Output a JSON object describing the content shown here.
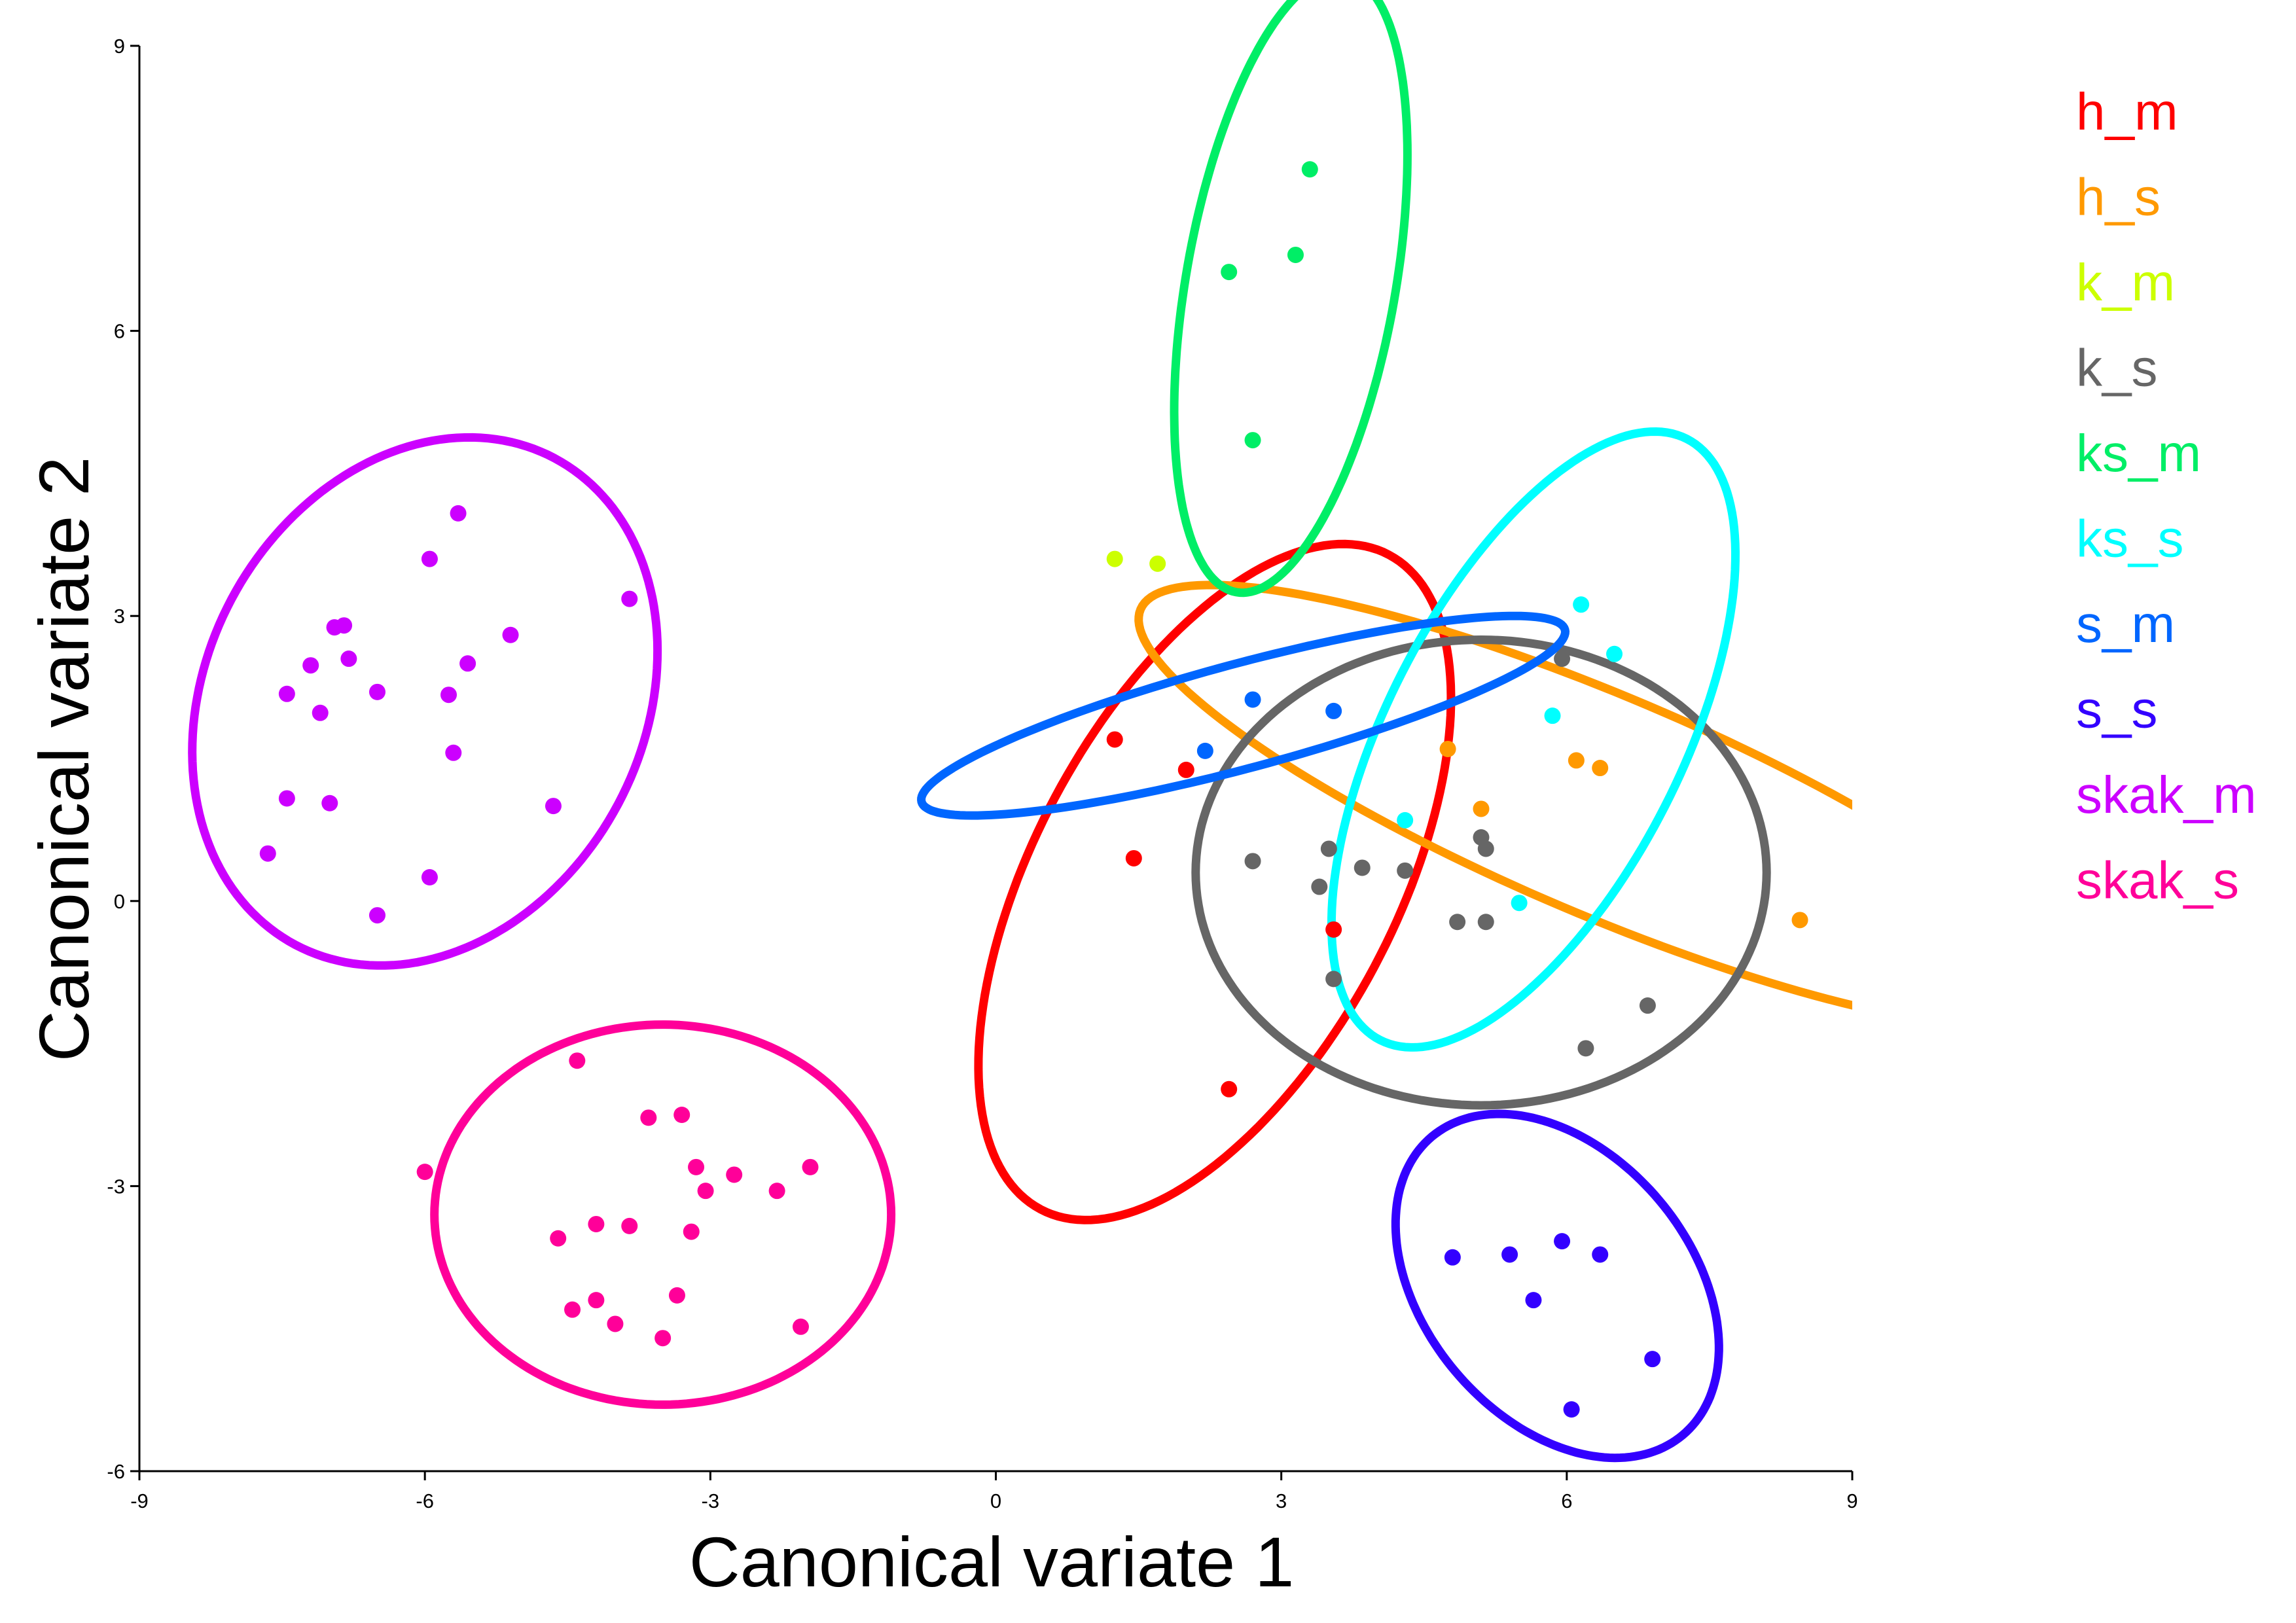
{
  "chart_data": {
    "type": "scatter",
    "title": "",
    "xlabel": "Canonical variate 1",
    "ylabel": "Canonical variate 2",
    "xlim": [
      -9,
      9
    ],
    "ylim": [
      -6,
      9
    ],
    "xticks": [
      -9,
      -6,
      -3,
      0,
      3,
      6,
      9
    ],
    "yticks": [
      -6,
      -3,
      0,
      3,
      6,
      9
    ],
    "xtick_labels": [
      "-9",
      "-6",
      "-3",
      "0",
      "3",
      "6",
      "9"
    ],
    "ytick_labels": [
      "-6",
      "-3",
      "0",
      "3",
      "6",
      "9"
    ],
    "grid": false,
    "legend_position": "right",
    "series": [
      {
        "name": "h_m",
        "color": "#ff0000",
        "ellipse": {
          "cx": 2.3,
          "cy": 0.2,
          "rx": 3.9,
          "ry": 1.9,
          "angle_deg": 62
        },
        "points": [
          [
            1.25,
            1.7
          ],
          [
            2.0,
            1.38
          ],
          [
            1.45,
            0.45
          ],
          [
            3.55,
            -0.3
          ],
          [
            2.45,
            -1.98
          ]
        ]
      },
      {
        "name": "h_s",
        "color": "#ff9900",
        "ellipse": {
          "cx": 6.4,
          "cy": 1.0,
          "rx": 5.3,
          "ry": 1.15,
          "angle_deg": -23
        },
        "points": [
          [
            4.75,
            1.6
          ],
          [
            5.1,
            0.97
          ],
          [
            6.1,
            1.48
          ],
          [
            6.35,
            1.4
          ],
          [
            8.45,
            -0.2
          ]
        ]
      },
      {
        "name": "k_m",
        "color": "#ccff00",
        "points": [
          [
            1.25,
            3.6
          ],
          [
            1.7,
            3.55
          ]
        ]
      },
      {
        "name": "k_s",
        "color": "#666666",
        "ellipse": {
          "cx": 5.1,
          "cy": 0.3,
          "rx": 3.0,
          "ry": 2.45,
          "angle_deg": 0
        },
        "points": [
          [
            5.95,
            2.55
          ],
          [
            2.7,
            0.42
          ],
          [
            3.5,
            0.55
          ],
          [
            3.4,
            0.15
          ],
          [
            3.85,
            0.35
          ],
          [
            4.3,
            0.32
          ],
          [
            5.1,
            0.67
          ],
          [
            5.15,
            0.55
          ],
          [
            4.85,
            -0.22
          ],
          [
            5.15,
            -0.22
          ],
          [
            3.55,
            -0.82
          ],
          [
            6.85,
            -1.1
          ],
          [
            6.2,
            -1.55
          ]
        ]
      },
      {
        "name": "ks_m",
        "color": "#00ee66",
        "ellipse": {
          "cx": 3.1,
          "cy": 6.5,
          "rx": 3.3,
          "ry": 1.1,
          "angle_deg": 80
        },
        "points": [
          [
            3.3,
            7.7
          ],
          [
            3.15,
            6.8
          ],
          [
            2.45,
            6.62
          ],
          [
            2.7,
            4.85
          ]
        ]
      },
      {
        "name": "ks_s",
        "color": "#00ffff",
        "ellipse": {
          "cx": 5.65,
          "cy": 1.7,
          "rx": 3.55,
          "ry": 1.55,
          "angle_deg": 63
        },
        "points": [
          [
            6.15,
            3.12
          ],
          [
            6.5,
            2.6
          ],
          [
            5.85,
            1.95
          ],
          [
            4.3,
            0.85
          ],
          [
            5.5,
            -0.02
          ]
        ]
      },
      {
        "name": "s_m",
        "color": "#0066ff",
        "ellipse": {
          "cx": 2.6,
          "cy": 1.95,
          "rx": 3.5,
          "ry": 0.55,
          "angle_deg": 15
        },
        "points": [
          [
            2.2,
            1.58
          ],
          [
            2.7,
            2.12
          ],
          [
            3.55,
            2.0
          ]
        ]
      },
      {
        "name": "s_s",
        "color": "#3300ff",
        "ellipse": {
          "cx": 5.9,
          "cy": -4.05,
          "rx": 2.05,
          "ry": 1.4,
          "angle_deg": -50
        },
        "points": [
          [
            4.8,
            -3.75
          ],
          [
            5.4,
            -3.72
          ],
          [
            5.95,
            -3.58
          ],
          [
            6.35,
            -3.72
          ],
          [
            5.65,
            -4.2
          ],
          [
            6.9,
            -4.82
          ],
          [
            6.05,
            -5.35
          ]
        ]
      },
      {
        "name": "skak_m",
        "color": "#cc00ff",
        "ellipse": {
          "cx": -6.0,
          "cy": 2.1,
          "rx": 2.9,
          "ry": 2.3,
          "angle_deg": 62
        },
        "points": [
          [
            -5.65,
            4.08
          ],
          [
            -5.95,
            3.6
          ],
          [
            -3.85,
            3.18
          ],
          [
            -6.95,
            2.88
          ],
          [
            -6.85,
            2.9
          ],
          [
            -5.1,
            2.8
          ],
          [
            -6.8,
            2.55
          ],
          [
            -5.55,
            2.5
          ],
          [
            -7.2,
            2.48
          ],
          [
            -6.5,
            2.2
          ],
          [
            -7.45,
            2.18
          ],
          [
            -5.75,
            2.17
          ],
          [
            -7.1,
            1.98
          ],
          [
            -5.7,
            1.56
          ],
          [
            -7.45,
            1.08
          ],
          [
            -7.0,
            1.03
          ],
          [
            -4.65,
            1.0
          ],
          [
            -7.65,
            0.5
          ],
          [
            -5.95,
            0.25
          ],
          [
            -6.5,
            -0.15
          ]
        ]
      },
      {
        "name": "skak_s",
        "color": "#ff0099",
        "ellipse": {
          "cx": -3.5,
          "cy": -3.3,
          "rx": 2.4,
          "ry": 2.0,
          "angle_deg": 0
        },
        "points": [
          [
            -4.4,
            -1.68
          ],
          [
            -3.65,
            -2.28
          ],
          [
            -3.3,
            -2.25
          ],
          [
            -6.0,
            -2.85
          ],
          [
            -3.15,
            -2.8
          ],
          [
            -2.75,
            -2.88
          ],
          [
            -1.95,
            -2.8
          ],
          [
            -3.05,
            -3.05
          ],
          [
            -2.3,
            -3.05
          ],
          [
            -4.2,
            -3.4
          ],
          [
            -3.85,
            -3.42
          ],
          [
            -3.2,
            -3.48
          ],
          [
            -4.6,
            -3.55
          ],
          [
            -3.35,
            -4.15
          ],
          [
            -4.2,
            -4.2
          ],
          [
            -4.45,
            -4.3
          ],
          [
            -4.0,
            -4.45
          ],
          [
            -2.05,
            -4.48
          ],
          [
            -3.5,
            -4.6
          ]
        ]
      }
    ]
  }
}
